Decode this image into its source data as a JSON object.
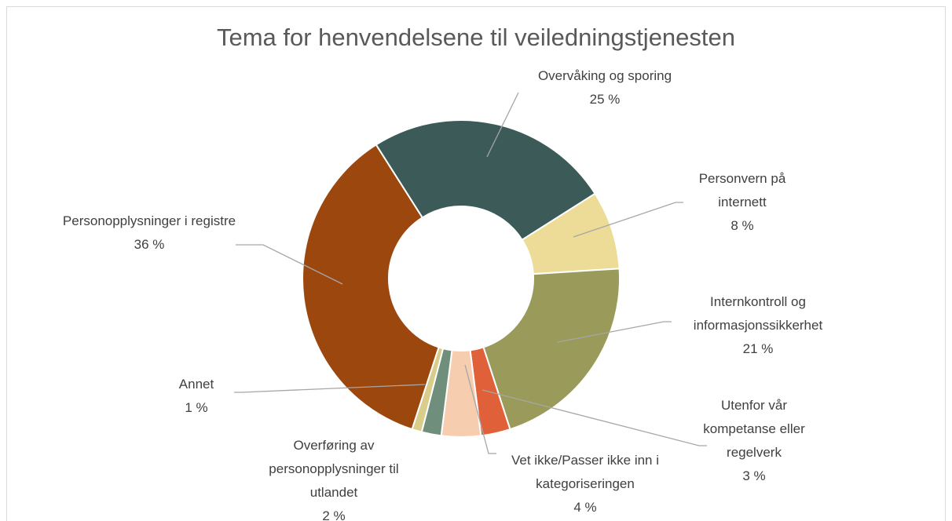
{
  "chart_data": {
    "type": "donut",
    "title": "Tema for henvendelsene til veiledningstjenesten",
    "categories": [
      "Overvåking og sporing",
      "Personvern på internett",
      "Internkontroll og informasjonssikkerhet",
      "Utenfor vår kompetanse eller regelverk",
      "Vet ikke/Passer ikke inn i kategoriseringen",
      "Overføring av personopplysninger til utlandet",
      "Annet",
      "Personopplysninger i registre"
    ],
    "values": [
      25,
      8,
      21,
      3,
      4,
      2,
      1,
      36
    ],
    "value_labels": [
      "25 %",
      "8 %",
      "21 %",
      "3 %",
      "4 %",
      "2 %",
      "1 %",
      "36 %"
    ],
    "colors": [
      "#3b5a58",
      "#ecdc97",
      "#9a9a5a",
      "#e0603a",
      "#f7cdb0",
      "#6f8e7c",
      "#d8cd8a",
      "#9c470e"
    ]
  }
}
